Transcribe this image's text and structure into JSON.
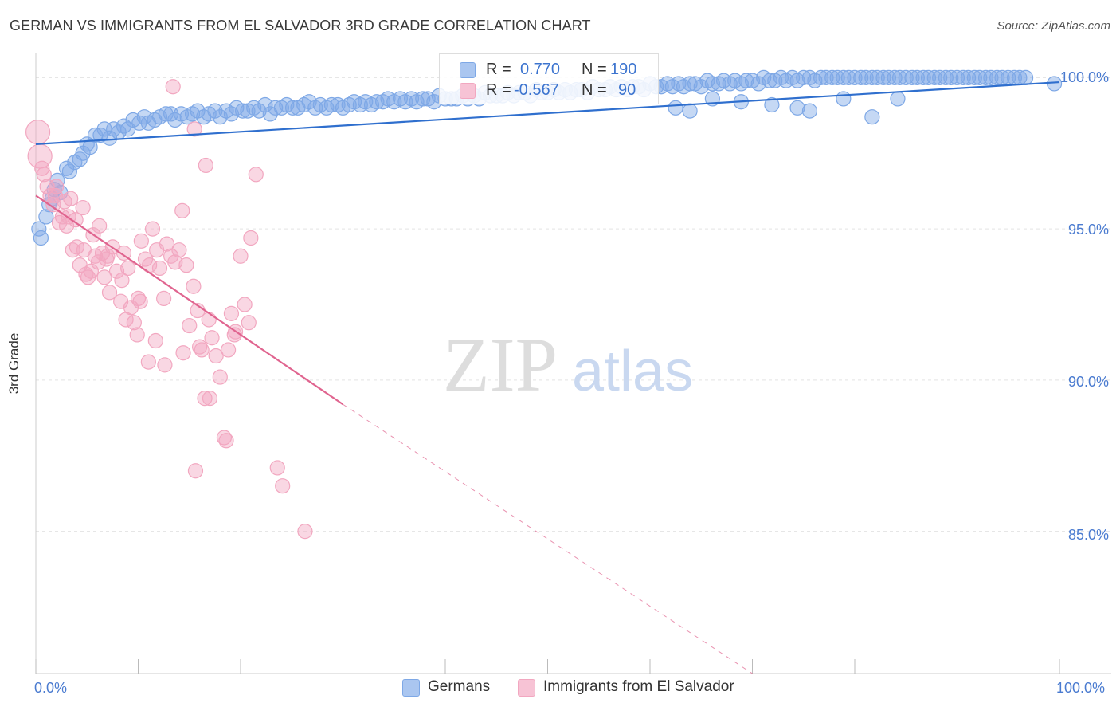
{
  "header": {
    "title": "GERMAN VS IMMIGRANTS FROM EL SALVADOR 3RD GRADE CORRELATION CHART",
    "source": "Source: ZipAtlas.com"
  },
  "watermark": {
    "zip": "ZIP",
    "atlas": "atlas"
  },
  "chart_data": {
    "type": "scatter",
    "title": "GERMAN VS IMMIGRANTS FROM EL SALVADOR 3RD GRADE CORRELATION CHART",
    "ylabel": "3rd Grade",
    "xlabel": "",
    "xlim": [
      0,
      100
    ],
    "ylim": [
      80.3,
      100.8
    ],
    "x_tick_labels": [
      "0.0%",
      "100.0%"
    ],
    "y_ticks": [
      {
        "value": 100,
        "label": "100.0%"
      },
      {
        "value": 95,
        "label": "95.0%"
      },
      {
        "value": 90,
        "label": "90.0%"
      },
      {
        "value": 85,
        "label": "85.0%"
      }
    ],
    "grid": true,
    "legend_position": "top-center",
    "series": [
      {
        "name": "Germans",
        "color": "#7ea8e6",
        "line_color": "#2f6fce",
        "R": "0.770",
        "N": "190",
        "trend": {
          "x0": 0,
          "y0": 97.8,
          "x1": 100,
          "y1": 99.85
        },
        "points": [
          [
            0.3,
            95.0
          ],
          [
            0.5,
            94.7
          ],
          [
            1.0,
            95.4
          ],
          [
            1.3,
            95.8
          ],
          [
            1.6,
            96.0
          ],
          [
            1.8,
            96.3
          ],
          [
            2.1,
            96.6
          ],
          [
            2.4,
            96.2
          ],
          [
            3.0,
            97.0
          ],
          [
            3.3,
            96.9
          ],
          [
            3.8,
            97.2
          ],
          [
            4.3,
            97.3
          ],
          [
            4.6,
            97.5
          ],
          [
            5.0,
            97.8
          ],
          [
            5.3,
            97.7
          ],
          [
            5.8,
            98.1
          ],
          [
            6.3,
            98.1
          ],
          [
            6.7,
            98.3
          ],
          [
            7.2,
            98.0
          ],
          [
            7.6,
            98.3
          ],
          [
            8.1,
            98.2
          ],
          [
            8.6,
            98.4
          ],
          [
            9.0,
            98.3
          ],
          [
            9.5,
            98.6
          ],
          [
            10.1,
            98.5
          ],
          [
            10.6,
            98.7
          ],
          [
            11.0,
            98.5
          ],
          [
            11.6,
            98.6
          ],
          [
            12.1,
            98.7
          ],
          [
            12.7,
            98.8
          ],
          [
            13.2,
            98.8
          ],
          [
            13.6,
            98.6
          ],
          [
            14.2,
            98.8
          ],
          [
            14.8,
            98.7
          ],
          [
            15.3,
            98.8
          ],
          [
            15.8,
            98.9
          ],
          [
            16.4,
            98.7
          ],
          [
            16.9,
            98.8
          ],
          [
            17.5,
            98.9
          ],
          [
            18.0,
            98.7
          ],
          [
            18.6,
            98.9
          ],
          [
            19.1,
            98.8
          ],
          [
            19.6,
            99.0
          ],
          [
            20.2,
            98.9
          ],
          [
            20.7,
            98.9
          ],
          [
            21.3,
            99.0
          ],
          [
            21.8,
            98.9
          ],
          [
            22.4,
            99.1
          ],
          [
            22.9,
            98.8
          ],
          [
            23.4,
            99.0
          ],
          [
            24.0,
            99.0
          ],
          [
            24.5,
            99.1
          ],
          [
            25.1,
            99.0
          ],
          [
            25.6,
            99.0
          ],
          [
            26.2,
            99.1
          ],
          [
            26.7,
            99.2
          ],
          [
            27.3,
            99.0
          ],
          [
            27.8,
            99.1
          ],
          [
            28.4,
            99.0
          ],
          [
            28.9,
            99.1
          ],
          [
            29.5,
            99.1
          ],
          [
            30.0,
            99.0
          ],
          [
            30.6,
            99.1
          ],
          [
            31.1,
            99.2
          ],
          [
            31.7,
            99.1
          ],
          [
            32.2,
            99.2
          ],
          [
            32.8,
            99.1
          ],
          [
            33.3,
            99.2
          ],
          [
            33.9,
            99.2
          ],
          [
            34.4,
            99.3
          ],
          [
            35.0,
            99.2
          ],
          [
            35.6,
            99.3
          ],
          [
            36.1,
            99.2
          ],
          [
            36.7,
            99.3
          ],
          [
            37.2,
            99.2
          ],
          [
            37.8,
            99.3
          ],
          [
            38.3,
            99.3
          ],
          [
            38.9,
            99.2
          ],
          [
            39.4,
            99.4
          ],
          [
            40.0,
            99.3
          ],
          [
            40.6,
            99.3
          ],
          [
            41.1,
            99.3
          ],
          [
            41.7,
            99.4
          ],
          [
            42.2,
            99.3
          ],
          [
            42.8,
            99.4
          ],
          [
            43.3,
            99.3
          ],
          [
            43.9,
            99.5
          ],
          [
            44.4,
            99.4
          ],
          [
            45.0,
            99.4
          ],
          [
            45.6,
            99.4
          ],
          [
            46.1,
            99.5
          ],
          [
            46.7,
            99.4
          ],
          [
            47.2,
            99.5
          ],
          [
            47.8,
            99.5
          ],
          [
            48.3,
            99.4
          ],
          [
            48.9,
            99.6
          ],
          [
            49.4,
            99.5
          ],
          [
            50.0,
            99.5
          ],
          [
            50.6,
            99.6
          ],
          [
            51.1,
            99.5
          ],
          [
            51.7,
            99.6
          ],
          [
            52.2,
            99.5
          ],
          [
            52.8,
            99.6
          ],
          [
            53.3,
            99.6
          ],
          [
            53.9,
            99.5
          ],
          [
            54.4,
            99.7
          ],
          [
            55.0,
            99.6
          ],
          [
            55.6,
            99.6
          ],
          [
            56.1,
            99.7
          ],
          [
            56.7,
            99.6
          ],
          [
            57.2,
            99.7
          ],
          [
            57.8,
            99.6
          ],
          [
            58.3,
            99.7
          ],
          [
            58.9,
            99.7
          ],
          [
            59.4,
            99.6
          ],
          [
            60.0,
            99.8
          ],
          [
            60.6,
            99.7
          ],
          [
            61.1,
            99.7
          ],
          [
            61.7,
            99.8
          ],
          [
            62.2,
            99.7
          ],
          [
            62.8,
            99.8
          ],
          [
            63.3,
            99.7
          ],
          [
            63.9,
            99.8
          ],
          [
            64.4,
            99.8
          ],
          [
            65.0,
            99.7
          ],
          [
            65.6,
            99.9
          ],
          [
            66.1,
            99.8
          ],
          [
            66.7,
            99.8
          ],
          [
            67.2,
            99.9
          ],
          [
            67.8,
            99.8
          ],
          [
            68.3,
            99.9
          ],
          [
            68.9,
            99.8
          ],
          [
            69.4,
            99.9
          ],
          [
            70.0,
            99.9
          ],
          [
            70.6,
            99.8
          ],
          [
            71.1,
            100.0
          ],
          [
            71.7,
            99.9
          ],
          [
            72.2,
            99.9
          ],
          [
            72.8,
            100.0
          ],
          [
            73.3,
            99.9
          ],
          [
            73.9,
            100.0
          ],
          [
            74.4,
            99.9
          ],
          [
            75.0,
            100.0
          ],
          [
            75.6,
            100.0
          ],
          [
            76.1,
            99.9
          ],
          [
            76.7,
            100.0
          ],
          [
            77.2,
            100.0
          ],
          [
            77.8,
            100.0
          ],
          [
            78.3,
            100.0
          ],
          [
            78.9,
            100.0
          ],
          [
            79.4,
            100.0
          ],
          [
            80.0,
            100.0
          ],
          [
            80.6,
            100.0
          ],
          [
            81.1,
            100.0
          ],
          [
            81.7,
            100.0
          ],
          [
            82.2,
            100.0
          ],
          [
            82.8,
            100.0
          ],
          [
            83.3,
            100.0
          ],
          [
            83.9,
            100.0
          ],
          [
            84.4,
            100.0
          ],
          [
            85.0,
            100.0
          ],
          [
            85.6,
            100.0
          ],
          [
            86.1,
            100.0
          ],
          [
            86.7,
            100.0
          ],
          [
            87.2,
            100.0
          ],
          [
            87.8,
            100.0
          ],
          [
            88.3,
            100.0
          ],
          [
            88.9,
            100.0
          ],
          [
            89.4,
            100.0
          ],
          [
            90.0,
            100.0
          ],
          [
            90.6,
            100.0
          ],
          [
            91.1,
            100.0
          ],
          [
            91.7,
            100.0
          ],
          [
            92.2,
            100.0
          ],
          [
            92.8,
            100.0
          ],
          [
            93.3,
            100.0
          ],
          [
            93.9,
            100.0
          ],
          [
            94.4,
            100.0
          ],
          [
            95.0,
            100.0
          ],
          [
            95.6,
            100.0
          ],
          [
            96.1,
            100.0
          ],
          [
            96.7,
            100.0
          ],
          [
            62.5,
            99.0
          ],
          [
            63.9,
            98.9
          ],
          [
            66.1,
            99.3
          ],
          [
            68.9,
            99.2
          ],
          [
            71.9,
            99.1
          ],
          [
            74.4,
            99.0
          ],
          [
            75.6,
            98.9
          ],
          [
            78.9,
            99.3
          ],
          [
            81.7,
            98.7
          ],
          [
            84.2,
            99.3
          ],
          [
            99.5,
            99.8
          ]
        ]
      },
      {
        "name": "Immigrants from El Salvador",
        "color": "#f2a7c0",
        "line_color": "#e0648f",
        "R": "-0.567",
        "N": "90",
        "trend": {
          "x0": 0,
          "y0": 96.1,
          "x1": 30,
          "y1": 89.2
        },
        "trend_dashed": {
          "x0": 30,
          "y0": 89.2,
          "x1": 70,
          "y1": 80.3
        },
        "points": [
          [
            0.2,
            98.2
          ],
          [
            0.4,
            97.4
          ],
          [
            0.6,
            97.0
          ],
          [
            0.8,
            96.8
          ],
          [
            1.1,
            96.4
          ],
          [
            1.4,
            96.1
          ],
          [
            1.7,
            95.8
          ],
          [
            2.0,
            96.4
          ],
          [
            2.3,
            95.2
          ],
          [
            2.6,
            95.4
          ],
          [
            3.0,
            95.1
          ],
          [
            3.4,
            96.0
          ],
          [
            3.6,
            94.3
          ],
          [
            4.0,
            94.4
          ],
          [
            4.3,
            93.8
          ],
          [
            4.7,
            94.3
          ],
          [
            5.1,
            93.4
          ],
          [
            5.4,
            93.6
          ],
          [
            5.8,
            94.1
          ],
          [
            6.1,
            93.9
          ],
          [
            6.5,
            94.2
          ],
          [
            6.9,
            94.0
          ],
          [
            7.2,
            92.9
          ],
          [
            7.5,
            94.4
          ],
          [
            7.9,
            93.6
          ],
          [
            8.3,
            92.6
          ],
          [
            8.6,
            94.2
          ],
          [
            9.0,
            93.7
          ],
          [
            9.3,
            92.4
          ],
          [
            9.6,
            91.9
          ],
          [
            10.0,
            92.7
          ],
          [
            10.3,
            94.6
          ],
          [
            10.7,
            94.0
          ],
          [
            11.1,
            93.8
          ],
          [
            11.4,
            95.0
          ],
          [
            11.8,
            94.3
          ],
          [
            12.1,
            93.7
          ],
          [
            12.5,
            92.7
          ],
          [
            12.8,
            94.5
          ],
          [
            13.2,
            94.1
          ],
          [
            13.6,
            93.9
          ],
          [
            14.0,
            94.3
          ],
          [
            14.3,
            95.6
          ],
          [
            14.7,
            93.8
          ],
          [
            15.0,
            91.8
          ],
          [
            15.4,
            93.1
          ],
          [
            15.8,
            92.3
          ],
          [
            16.2,
            91.0
          ],
          [
            16.5,
            89.4
          ],
          [
            16.9,
            92.0
          ],
          [
            17.2,
            91.4
          ],
          [
            17.6,
            90.8
          ],
          [
            18.0,
            90.1
          ],
          [
            18.4,
            88.1
          ],
          [
            18.8,
            91.0
          ],
          [
            19.1,
            92.2
          ],
          [
            19.5,
            91.6
          ],
          [
            20.0,
            94.1
          ],
          [
            20.4,
            92.5
          ],
          [
            21.0,
            94.7
          ],
          [
            21.5,
            96.8
          ],
          [
            13.4,
            99.7
          ],
          [
            15.5,
            98.3
          ],
          [
            16.6,
            97.1
          ],
          [
            3.2,
            95.4
          ],
          [
            4.6,
            95.7
          ],
          [
            6.2,
            95.1
          ],
          [
            7.0,
            94.1
          ],
          [
            8.4,
            93.3
          ],
          [
            10.2,
            92.6
          ],
          [
            11.7,
            91.3
          ],
          [
            12.6,
            90.5
          ],
          [
            14.4,
            90.9
          ],
          [
            15.6,
            87.0
          ],
          [
            16.0,
            91.1
          ],
          [
            17.0,
            89.4
          ],
          [
            18.6,
            88.0
          ],
          [
            19.4,
            91.5
          ],
          [
            20.8,
            91.9
          ],
          [
            23.6,
            87.1
          ],
          [
            24.1,
            86.5
          ],
          [
            26.3,
            85.0
          ],
          [
            8.8,
            92.0
          ],
          [
            9.9,
            91.5
          ],
          [
            11.0,
            90.6
          ],
          [
            4.9,
            93.5
          ],
          [
            5.6,
            94.8
          ],
          [
            6.7,
            93.4
          ],
          [
            2.8,
            95.9
          ],
          [
            1.9,
            96.1
          ],
          [
            3.9,
            95.3
          ]
        ]
      }
    ]
  },
  "legend": {
    "r_label": "R =",
    "n_label": "N =",
    "rows": [
      {
        "name": "Germans",
        "r": "0.770",
        "n": "190"
      },
      {
        "name": "Immigrants from El Salvador",
        "r": "-0.567",
        "n": "90"
      }
    ]
  },
  "bottom_legend": [
    "Germans",
    "Immigrants from El Salvador"
  ]
}
